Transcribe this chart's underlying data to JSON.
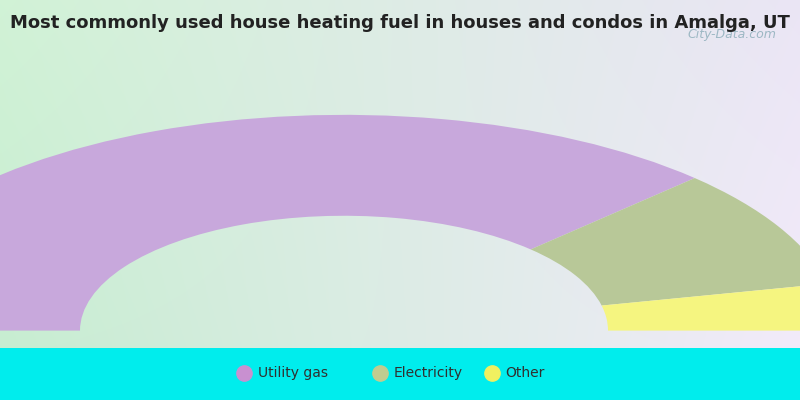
{
  "title": "Most commonly used house heating fuel in houses and condos in Amalga, UT",
  "title_fontsize": 13,
  "background_color": "#00EDED",
  "segments": [
    {
      "label": "Utility gas",
      "value": 75,
      "color": "#c8a8dc"
    },
    {
      "label": "Electricity",
      "value": 18,
      "color": "#b8c898"
    },
    {
      "label": "Other",
      "value": 7,
      "color": "#f5f580"
    }
  ],
  "legend_colors": [
    "#c890d0",
    "#c0cc90",
    "#f0f060"
  ],
  "legend_labels": [
    "Utility gas",
    "Electricity",
    "Other"
  ],
  "watermark": "City-Data.com",
  "legend_fontsize": 10,
  "text_color": "#303030",
  "title_color": "#222222",
  "grad_topleft": [
    0.82,
    0.95,
    0.84
  ],
  "grad_topright": [
    0.92,
    0.9,
    0.96
  ],
  "grad_bottomleft": [
    0.78,
    0.93,
    0.82
  ],
  "grad_bottomright": [
    0.95,
    0.92,
    0.98
  ]
}
